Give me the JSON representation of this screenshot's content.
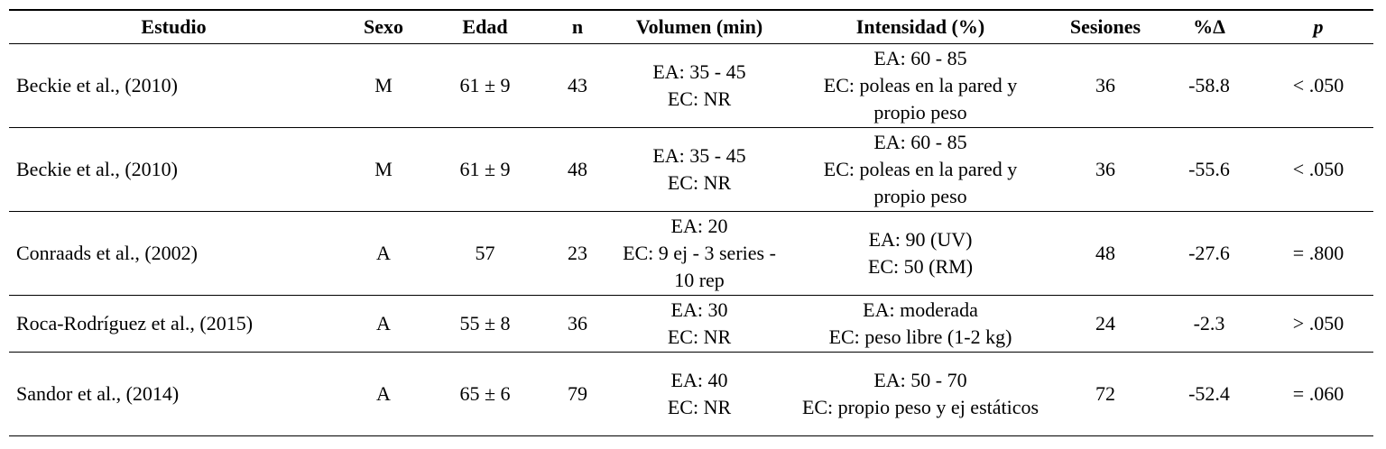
{
  "table": {
    "header": [
      "Estudio",
      "Sexo",
      "Edad",
      "n",
      "Volumen (min)",
      "Intensidad (%)",
      "Sesiones",
      "%Δ",
      "p"
    ],
    "rows": [
      [
        [
          "Beckie et al., (2010)"
        ],
        [
          "M"
        ],
        [
          "61 ± 9"
        ],
        [
          "43"
        ],
        [
          "EA: 35 - 45",
          "EC: NR"
        ],
        [
          "EA: 60 - 85",
          "EC: poleas en la pared y propio peso"
        ],
        [
          "36"
        ],
        [
          "-58.8"
        ],
        [
          "< .050"
        ]
      ],
      [
        [
          "Beckie et al., (2010)"
        ],
        [
          "M"
        ],
        [
          "61 ± 9"
        ],
        [
          "48"
        ],
        [
          "EA: 35 - 45",
          "EC: NR"
        ],
        [
          "EA: 60 - 85",
          "EC: poleas en la pared y propio peso"
        ],
        [
          "36"
        ],
        [
          "-55.6"
        ],
        [
          "< .050"
        ]
      ],
      [
        [
          "Conraads et al., (2002)"
        ],
        [
          "A"
        ],
        [
          "57"
        ],
        [
          "23"
        ],
        [
          "EA: 20",
          "EC: 9 ej - 3 series - 10 rep"
        ],
        [
          "EA: 90 (UV)",
          "EC: 50 (RM)"
        ],
        [
          "48"
        ],
        [
          "-27.6"
        ],
        [
          "= .800"
        ]
      ],
      [
        [
          "Roca-Rodríguez et al., (2015)"
        ],
        [
          "A"
        ],
        [
          "55 ± 8"
        ],
        [
          "36"
        ],
        [
          "EA: 30",
          "EC: NR"
        ],
        [
          "EA: moderada",
          "EC: peso libre (1-2 kg)"
        ],
        [
          "24"
        ],
        [
          "-2.3"
        ],
        [
          "> .050"
        ]
      ],
      [
        [
          "Sandor et al., (2014)"
        ],
        [
          "A"
        ],
        [
          "65 ± 6"
        ],
        [
          "79"
        ],
        [
          "EA: 40",
          "EC: NR"
        ],
        [
          "EA: 50 - 70",
          "EC: propio peso y ej estáticos"
        ],
        [
          "72"
        ],
        [
          "-52.4"
        ],
        [
          "= .060"
        ]
      ]
    ]
  }
}
